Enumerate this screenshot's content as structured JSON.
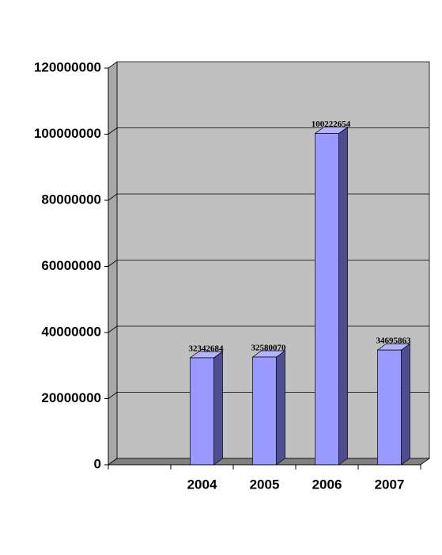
{
  "chart_data": {
    "type": "bar3d",
    "categories": [
      null,
      "2004",
      "2005",
      "2006",
      "2007"
    ],
    "values": [
      null,
      32342684,
      32580070,
      100222654,
      34695863
    ],
    "color": "#9999ff",
    "ylim": [
      0,
      120000000
    ],
    "yticks": [
      0,
      20000000,
      40000000,
      60000000,
      80000000,
      100000000,
      120000000
    ],
    "grid": true
  }
}
